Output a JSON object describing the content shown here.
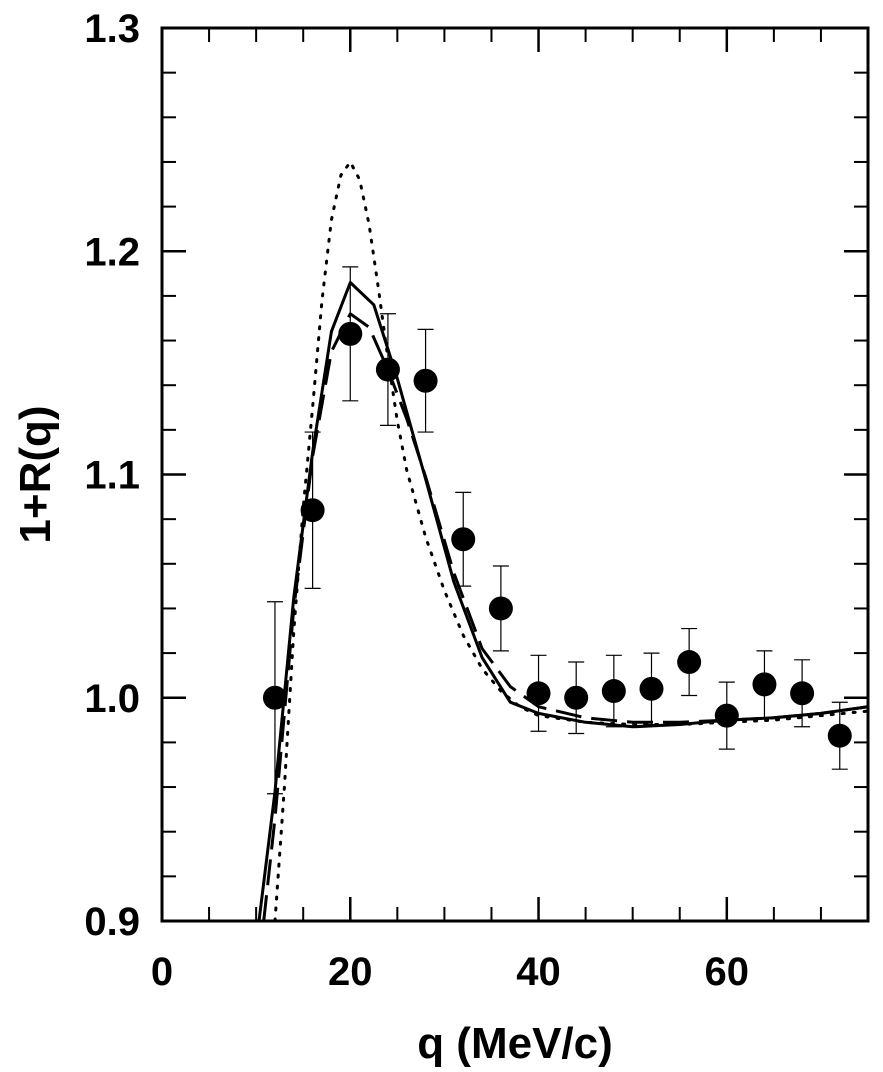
{
  "chart_data": {
    "type": "scatter",
    "title": "",
    "xlabel": "q (MeV/c)",
    "ylabel": "1+R(q)",
    "xlim": [
      0,
      75
    ],
    "ylim": [
      0.9,
      1.3
    ],
    "x_ticks": [
      0,
      20,
      40,
      60
    ],
    "x_tick_labels": [
      "0",
      "20",
      "40",
      "60"
    ],
    "y_ticks": [
      0.9,
      1.0,
      1.1,
      1.2,
      1.3
    ],
    "y_tick_labels": [
      "0.9",
      "1.0",
      "1.1",
      "1.2",
      "1.3"
    ],
    "x_minor_step": 5,
    "y_minor_step": 0.02,
    "grid": false,
    "legend": "none",
    "series": [
      {
        "style": "markers-with-errorbars",
        "x": [
          12,
          16,
          20,
          24,
          28,
          32,
          36,
          40,
          44,
          48,
          52,
          56,
          60,
          64,
          68,
          72
        ],
        "y": [
          1.0,
          1.084,
          1.163,
          1.147,
          1.142,
          1.071,
          1.04,
          1.002,
          1.0,
          1.003,
          1.004,
          1.016,
          0.992,
          1.006,
          1.002,
          0.983
        ],
        "yerr": [
          0.043,
          0.035,
          0.03,
          0.025,
          0.023,
          0.021,
          0.019,
          0.017,
          0.016,
          0.016,
          0.016,
          0.015,
          0.015,
          0.015,
          0.015,
          0.015
        ]
      },
      {
        "style": "solid",
        "x": [
          10.3,
          12,
          14,
          16,
          18,
          20,
          22.5,
          25,
          28,
          31,
          34,
          37,
          40,
          45,
          50,
          55,
          60,
          65,
          70,
          75
        ],
        "y": [
          0.9,
          0.958,
          1.045,
          1.11,
          1.164,
          1.186,
          1.176,
          1.143,
          1.098,
          1.052,
          1.018,
          0.998,
          0.993,
          0.989,
          0.987,
          0.988,
          0.99,
          0.991,
          0.993,
          0.996
        ]
      },
      {
        "style": "dashed",
        "x": [
          10.8,
          12,
          14,
          16,
          18,
          20,
          22,
          24,
          26,
          28,
          31,
          34,
          37,
          40,
          45,
          50,
          55,
          60,
          65,
          70,
          75
        ],
        "y": [
          0.9,
          0.946,
          1.04,
          1.108,
          1.155,
          1.172,
          1.166,
          1.147,
          1.125,
          1.099,
          1.056,
          1.022,
          1.005,
          0.996,
          0.991,
          0.989,
          0.989,
          0.99,
          0.991,
          0.993,
          0.996
        ]
      },
      {
        "style": "dotted",
        "x": [
          12,
          13,
          14,
          15,
          16,
          17,
          18,
          19,
          20,
          21,
          22,
          23,
          24,
          25,
          26,
          28,
          30,
          32,
          34,
          36,
          38,
          40,
          45,
          50,
          55,
          60,
          65,
          70,
          75
        ],
        "y": [
          0.9,
          0.96,
          1.03,
          1.085,
          1.13,
          1.178,
          1.214,
          1.234,
          1.24,
          1.232,
          1.212,
          1.183,
          1.152,
          1.124,
          1.102,
          1.072,
          1.048,
          1.028,
          1.013,
          1.003,
          0.996,
          0.992,
          0.989,
          0.988,
          0.988,
          0.989,
          0.99,
          0.992,
          0.994
        ]
      }
    ]
  }
}
